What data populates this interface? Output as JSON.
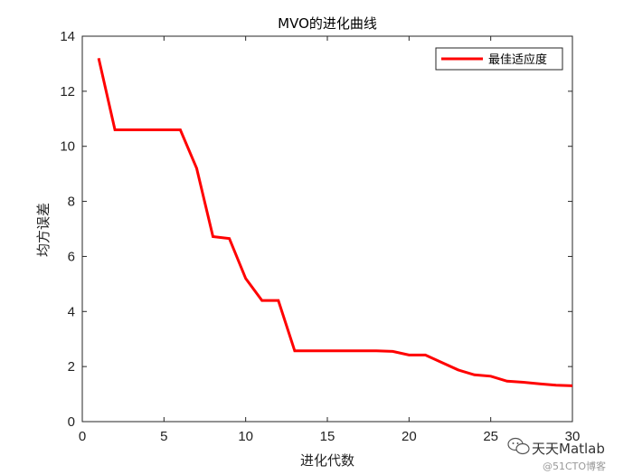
{
  "chart_data": {
    "type": "line",
    "title": "MVO的进化曲线",
    "xlabel": "进化代数",
    "ylabel": "均方误差",
    "xlim": [
      0,
      30
    ],
    "ylim": [
      0,
      14
    ],
    "xticks": [
      0,
      5,
      10,
      15,
      20,
      25,
      30
    ],
    "yticks": [
      0,
      2,
      4,
      6,
      8,
      10,
      12,
      14
    ],
    "grid": false,
    "legend_position": "top-right",
    "series": [
      {
        "name": "最佳适应度",
        "color": "#ff0000",
        "x": [
          1,
          2,
          3,
          4,
          5,
          6,
          7,
          8,
          9,
          10,
          11,
          12,
          13,
          14,
          15,
          16,
          17,
          18,
          19,
          20,
          21,
          22,
          23,
          24,
          25,
          26,
          27,
          28,
          29,
          30
        ],
        "y": [
          13.2,
          10.6,
          10.6,
          10.6,
          10.6,
          10.6,
          9.2,
          6.72,
          6.65,
          5.2,
          4.4,
          4.4,
          2.57,
          2.57,
          2.57,
          2.57,
          2.57,
          2.57,
          2.55,
          2.42,
          2.42,
          2.15,
          1.88,
          1.7,
          1.65,
          1.47,
          1.43,
          1.37,
          1.32,
          1.3
        ]
      }
    ]
  },
  "watermark": {
    "line1": "天天Matlab",
    "line2": "@51CTO博客",
    "icon": "wechat-icon"
  }
}
